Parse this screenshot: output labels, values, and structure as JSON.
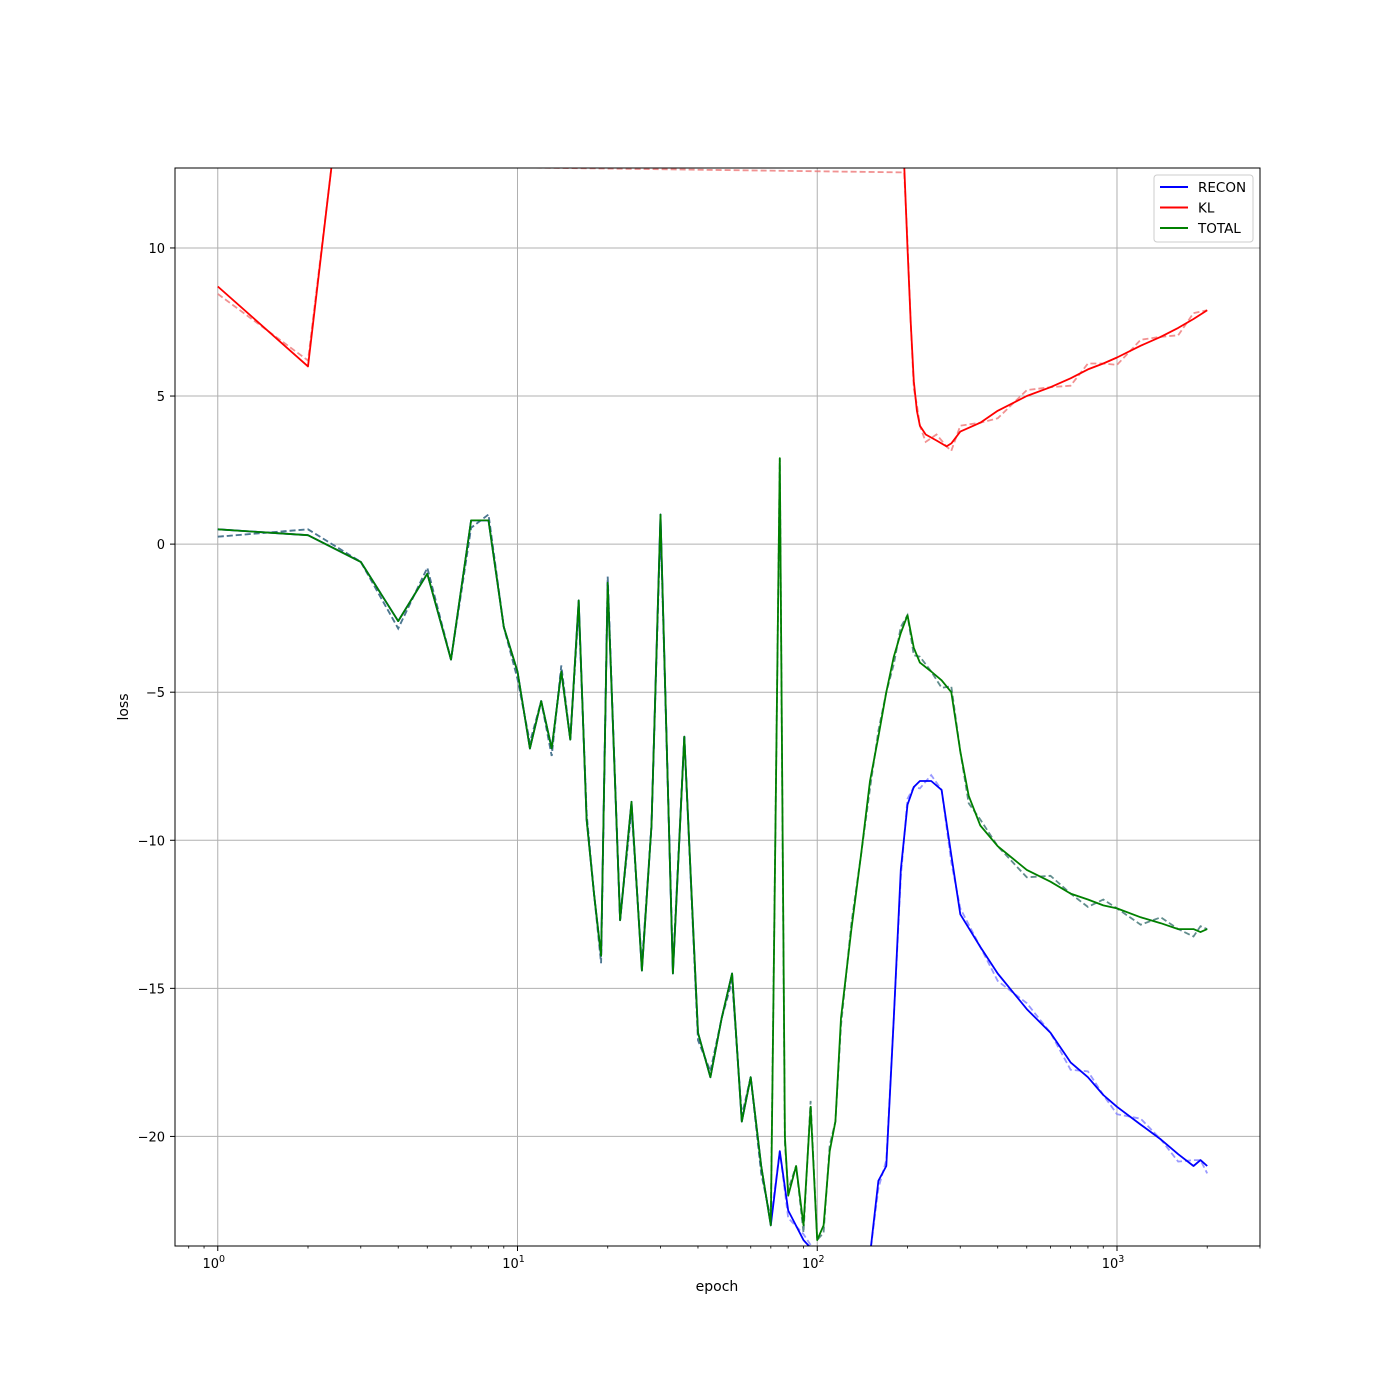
{
  "chart_data": {
    "type": "line",
    "title": "",
    "xlabel": "epoch",
    "ylabel": "loss",
    "xscale": "log",
    "xlim": [
      0.72,
      3000
    ],
    "ylim": [
      -23.7,
      12.7
    ],
    "grid": true,
    "legend_position": "top-right",
    "x_ticks": [
      {
        "value": 1,
        "base": "10",
        "exp": "0"
      },
      {
        "value": 10,
        "base": "10",
        "exp": "1"
      },
      {
        "value": 100,
        "base": "10",
        "exp": "2"
      },
      {
        "value": 1000,
        "base": "10",
        "exp": "3"
      }
    ],
    "y_ticks": [
      {
        "value": 10,
        "label": "10"
      },
      {
        "value": 5,
        "label": "5"
      },
      {
        "value": 0,
        "label": "0"
      },
      {
        "value": -5,
        "label": "−5"
      },
      {
        "value": -10,
        "label": "−10"
      },
      {
        "value": -15,
        "label": "−15"
      },
      {
        "value": -20,
        "label": "−20"
      }
    ],
    "series": [
      {
        "name": "RECON",
        "color": "#0000ff",
        "x": [
          1,
          2,
          3,
          4,
          5,
          6,
          7,
          8,
          9,
          10,
          11,
          12,
          13,
          14,
          15,
          16,
          17,
          18,
          19,
          20,
          22,
          24,
          26,
          28,
          30,
          33,
          36,
          40,
          44,
          48,
          52,
          56,
          60,
          65,
          70,
          75,
          80,
          90,
          100,
          110,
          115,
          150,
          160,
          170,
          180,
          190,
          200,
          210,
          220,
          240,
          260,
          280,
          300,
          350,
          400,
          500,
          600,
          700,
          800,
          900,
          1000,
          1200,
          1400,
          1600,
          1800,
          1900,
          2000
        ],
        "y": [
          0.5,
          0.3,
          -0.6,
          -2.6,
          -1.0,
          -3.9,
          0.8,
          0.8,
          -2.8,
          -4.3,
          -6.9,
          -5.3,
          -6.9,
          -4.3,
          -6.6,
          -1.9,
          -9.3,
          -11.8,
          -13.9,
          -1.3,
          -12.7,
          -8.7,
          -14.4,
          -9.5,
          1.0,
          -14.5,
          -6.5,
          -16.5,
          -18.0,
          -16.0,
          -14.5,
          -19.5,
          -18.0,
          -21.0,
          -23.0,
          -20.5,
          -22.5,
          -23.5,
          -24.0,
          -24.0,
          -24.0,
          -24.0,
          -21.5,
          -21.0,
          -16.0,
          -11.0,
          -8.8,
          -8.2,
          -8.0,
          -8.0,
          -8.3,
          -10.5,
          -12.5,
          -13.6,
          -14.5,
          -15.7,
          -16.5,
          -17.5,
          -18.0,
          -18.6,
          -19.0,
          -19.6,
          -20.1,
          -20.6,
          -21.0,
          -20.8,
          -21.0
        ]
      },
      {
        "name": "KL",
        "color": "#ff0000",
        "x": [
          1,
          2,
          2.4,
          195,
          200,
          205,
          210,
          215,
          220,
          230,
          250,
          270,
          280,
          300,
          350,
          400,
          500,
          600,
          700,
          800,
          900,
          1000,
          1200,
          1400,
          1600,
          1800,
          2000
        ],
        "y": [
          8.7,
          6.0,
          12.8,
          12.8,
          10.0,
          7.5,
          5.5,
          4.5,
          4.0,
          3.7,
          3.5,
          3.3,
          3.4,
          3.8,
          4.1,
          4.5,
          5.0,
          5.3,
          5.6,
          5.9,
          6.1,
          6.3,
          6.7,
          7.0,
          7.3,
          7.6,
          7.9
        ]
      },
      {
        "name": "TOTAL",
        "color": "#008000",
        "x": [
          1,
          2,
          3,
          4,
          5,
          6,
          7,
          8,
          9,
          10,
          11,
          12,
          13,
          14,
          15,
          16,
          17,
          18,
          19,
          20,
          22,
          24,
          26,
          28,
          30,
          33,
          36,
          40,
          44,
          48,
          52,
          56,
          60,
          65,
          70,
          75,
          78,
          80,
          85,
          90,
          95,
          100,
          105,
          110,
          115,
          120,
          130,
          140,
          150,
          160,
          170,
          180,
          190,
          200,
          210,
          220,
          240,
          260,
          280,
          300,
          320,
          350,
          400,
          500,
          600,
          700,
          800,
          900,
          1000,
          1200,
          1400,
          1600,
          1800,
          1900,
          2000
        ],
        "y": [
          0.5,
          0.3,
          -0.6,
          -2.6,
          -1.0,
          -3.9,
          0.8,
          0.8,
          -2.8,
          -4.3,
          -6.9,
          -5.3,
          -6.9,
          -4.3,
          -6.6,
          -1.9,
          -9.3,
          -11.8,
          -13.9,
          -1.3,
          -12.7,
          -8.7,
          -14.4,
          -9.5,
          1.0,
          -14.5,
          -6.5,
          -16.5,
          -18.0,
          -16.0,
          -14.5,
          -19.5,
          -18.0,
          -21.0,
          -23.0,
          2.9,
          -20.0,
          -22.0,
          -21.0,
          -23.0,
          -19.0,
          -23.5,
          -23.0,
          -20.5,
          -19.5,
          -16.0,
          -13.0,
          -10.5,
          -8.0,
          -6.5,
          -5.0,
          -3.8,
          -3.0,
          -2.4,
          -3.5,
          -4.0,
          -4.3,
          -4.6,
          -5.0,
          -7.0,
          -8.5,
          -9.5,
          -10.2,
          -11.0,
          -11.4,
          -11.8,
          -12.0,
          -12.2,
          -12.3,
          -12.6,
          -12.8,
          -13.0,
          -13.0,
          -13.1,
          -13.0
        ]
      }
    ]
  }
}
